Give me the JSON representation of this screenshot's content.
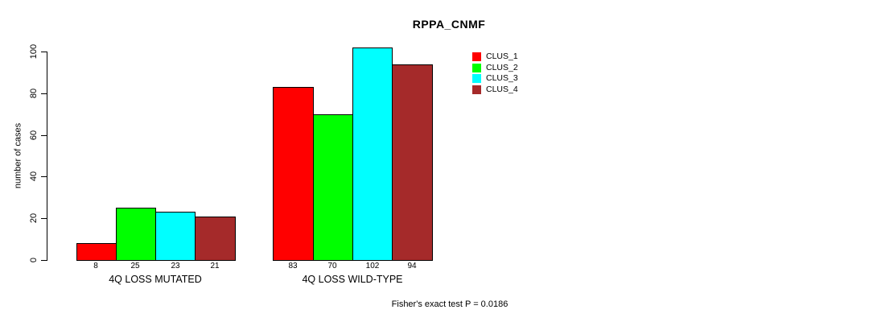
{
  "chart_data": {
    "type": "bar",
    "title": "RPPA_CNMF",
    "ylabel": "number of cases",
    "xlabel": "",
    "categories": [
      "4Q LOSS MUTATED",
      "4Q LOSS WILD-TYPE"
    ],
    "series": [
      {
        "name": "CLUS_1",
        "color": "#ff0000",
        "values": [
          8,
          83
        ]
      },
      {
        "name": "CLUS_2",
        "color": "#00ff00",
        "values": [
          25,
          70
        ]
      },
      {
        "name": "CLUS_3",
        "color": "#00ffff",
        "values": [
          23,
          102
        ]
      },
      {
        "name": "CLUS_4",
        "color": "#a52a2a",
        "values": [
          21,
          94
        ]
      }
    ],
    "bar_value_labels": [
      [
        "8",
        "25",
        "23",
        "21"
      ],
      [
        "83",
        "70",
        "102",
        "94"
      ]
    ],
    "yticks": [
      0,
      20,
      40,
      60,
      80,
      100
    ],
    "ylim": [
      0,
      100
    ],
    "grid": false,
    "legend_position": "top-right",
    "annotation": "Fisher's exact test P = 0.0186",
    "axis_color": "#000000",
    "background_color": "#ffffff"
  }
}
